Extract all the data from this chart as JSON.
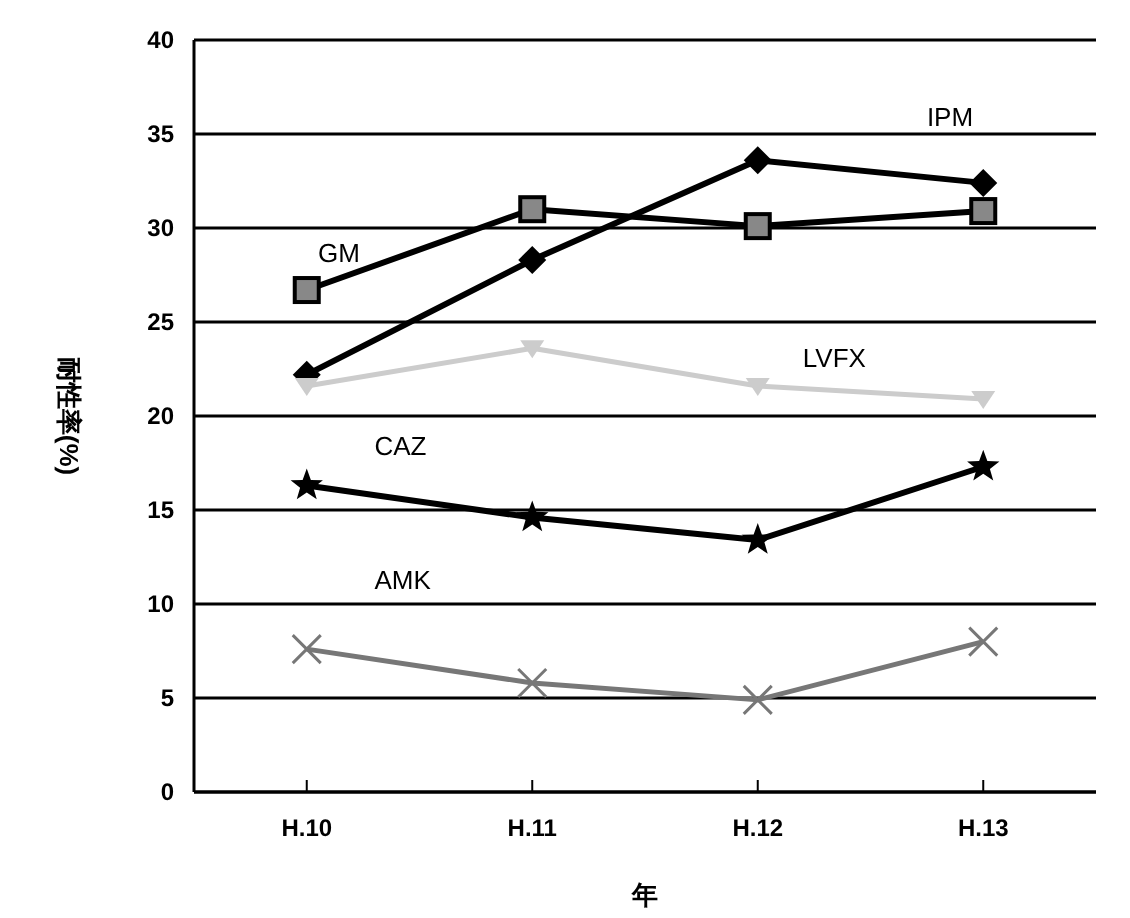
{
  "chart_data": {
    "type": "line",
    "xlabel": "年",
    "ylabel": "耐性率(%)",
    "categories": [
      "H.10",
      "H.11",
      "H.12",
      "H.13"
    ],
    "series": [
      {
        "name": "IPM",
        "color": "#000000",
        "marker": "diamond",
        "values": [
          22.2,
          28.3,
          33.6,
          32.4
        ]
      },
      {
        "name": "GM",
        "color": "#000000",
        "marker": "square",
        "values": [
          26.7,
          31.0,
          30.1,
          30.9
        ]
      },
      {
        "name": "LVFX",
        "color": "#cccccc",
        "marker": "triangle",
        "values": [
          21.6,
          23.6,
          21.6,
          20.9
        ]
      },
      {
        "name": "CAZ",
        "color": "#000000",
        "marker": "star",
        "values": [
          16.3,
          14.6,
          13.4,
          17.3
        ]
      },
      {
        "name": "AMK",
        "color": "#777777",
        "marker": "cross",
        "values": [
          7.6,
          5.8,
          4.9,
          8.0
        ]
      }
    ],
    "ylim": [
      0,
      40
    ],
    "yticks": [
      0,
      5,
      10,
      15,
      20,
      25,
      30,
      35,
      40
    ],
    "grid": "y"
  }
}
